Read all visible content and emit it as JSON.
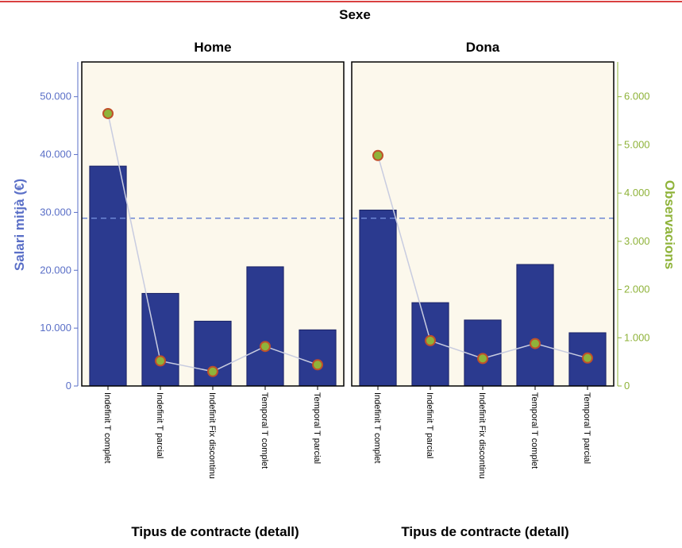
{
  "chart_data": {
    "type": "bar",
    "title": "Sexe",
    "xlabel": "Tipus de contracte (detall)",
    "ylabel_left": "Salari mitjà (€)",
    "ylabel_right": "Observacions",
    "categories": [
      "Indefinit T complet",
      "Indefinit T parcial",
      "Indefinit Fix discontinu",
      "Temporal T complet",
      "Temporal T parcial"
    ],
    "left_axis": {
      "ylim": [
        0,
        56000
      ],
      "ticks": [
        0,
        10000,
        20000,
        30000,
        40000,
        50000
      ],
      "tick_labels": [
        "0",
        "10.000",
        "20.000",
        "30.000",
        "40.000",
        "50.000"
      ]
    },
    "right_axis": {
      "ylim": [
        0,
        6720
      ],
      "ticks": [
        0,
        1000,
        2000,
        3000,
        4000,
        5000,
        6000
      ],
      "tick_labels": [
        "0",
        "1.000",
        "2.000",
        "3.000",
        "4.000",
        "5.000",
        "6.000"
      ]
    },
    "reference_line": {
      "value": 29000,
      "style": "dashed"
    },
    "panels": [
      {
        "name": "Home",
        "bar_values": [
          38000,
          16000,
          11200,
          20600,
          9700
        ],
        "observations": [
          5650,
          520,
          300,
          820,
          440
        ]
      },
      {
        "name": "Dona",
        "bar_values": [
          30400,
          14400,
          11400,
          21000,
          9200
        ],
        "observations": [
          4780,
          940,
          570,
          880,
          580
        ]
      }
    ],
    "grid": false,
    "colors": {
      "bar": "#2b3a8f",
      "bar_stroke": "#1a2366",
      "panel_bg": "#fcf8ec",
      "left_axis": "#5a6fc7",
      "right_axis": "#8fb33a",
      "marker_fill": "#8fb33a",
      "marker_stroke": "#c0502a",
      "line": "#c8cce0",
      "ref_line": "#6c86d4",
      "frame": "#000000"
    }
  }
}
